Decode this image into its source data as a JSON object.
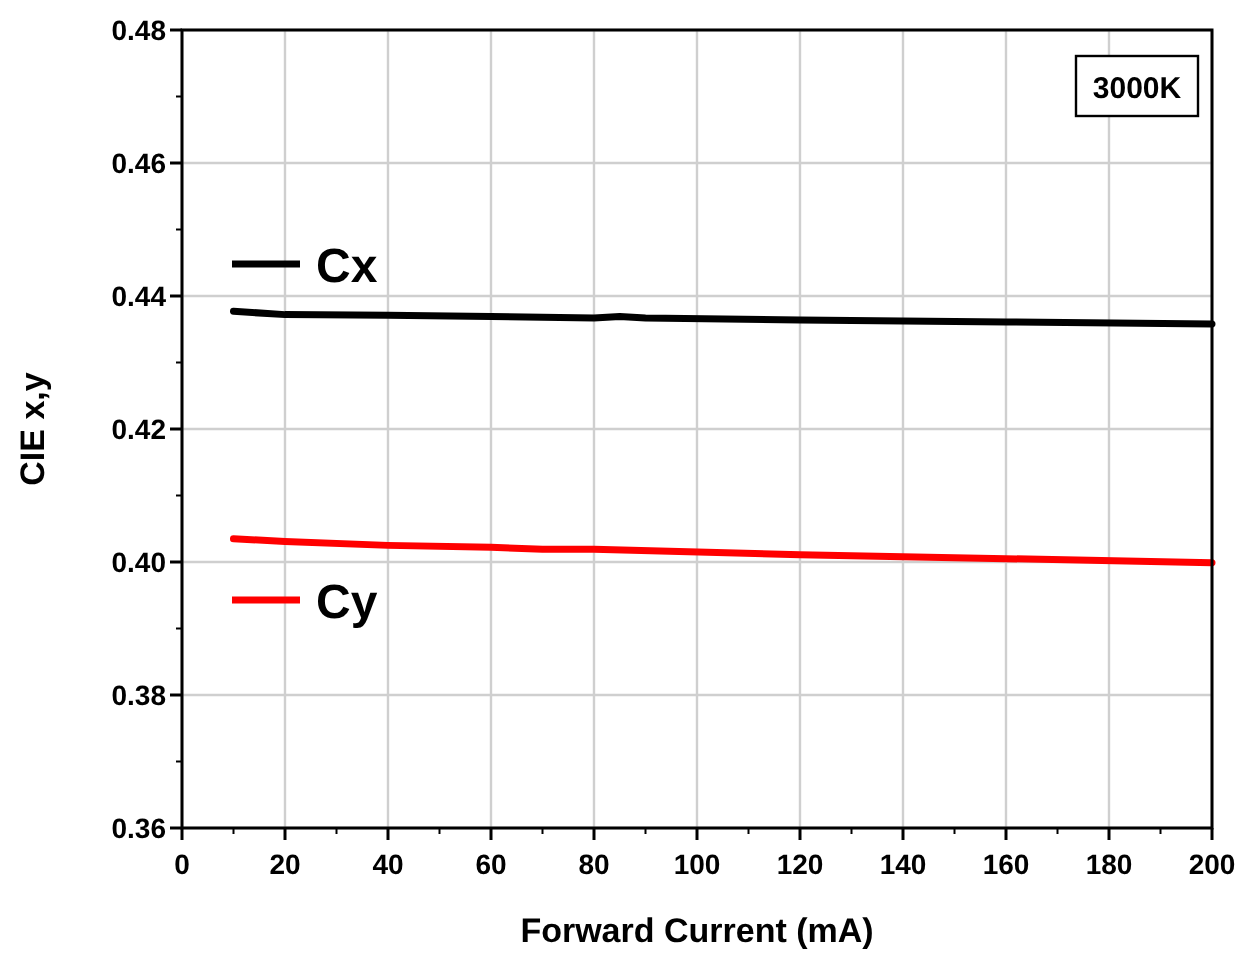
{
  "chart_data": {
    "type": "line",
    "xlabel": "Forward Current (mA)",
    "ylabel": "CIE x,y",
    "annotations": [
      "3000K"
    ],
    "series": [
      {
        "name": "Cx",
        "color": "#000000",
        "x": [
          10,
          20,
          40,
          60,
          80,
          85,
          90,
          120,
          160,
          200
        ],
        "values": [
          0.4377,
          0.4372,
          0.4371,
          0.4369,
          0.4367,
          0.4369,
          0.4367,
          0.4364,
          0.4361,
          0.4358
        ]
      },
      {
        "name": "Cy",
        "color": "#ff0000",
        "x": [
          10,
          20,
          40,
          60,
          70,
          80,
          120,
          160,
          200
        ],
        "values": [
          0.4035,
          0.4031,
          0.4025,
          0.4022,
          0.4019,
          0.4019,
          0.4011,
          0.4005,
          0.3999
        ]
      }
    ],
    "xlim": [
      0,
      200
    ],
    "xticks": [
      0,
      20,
      40,
      60,
      80,
      100,
      120,
      140,
      160,
      180,
      200
    ],
    "ylim": [
      0.36,
      0.48
    ],
    "yticks": [
      {
        "value": 0.36,
        "label": "0.36"
      },
      {
        "value": 0.38,
        "label": "0.38"
      },
      {
        "value": 0.4,
        "label": "0.40"
      },
      {
        "value": 0.42,
        "label": "0.42"
      },
      {
        "value": 0.44,
        "label": "0.44"
      },
      {
        "value": 0.46,
        "label": "0.46"
      },
      {
        "value": 0.48,
        "label": "0.48"
      }
    ],
    "grid": true,
    "legend": "left",
    "marker": "none",
    "line_style": "solid"
  }
}
